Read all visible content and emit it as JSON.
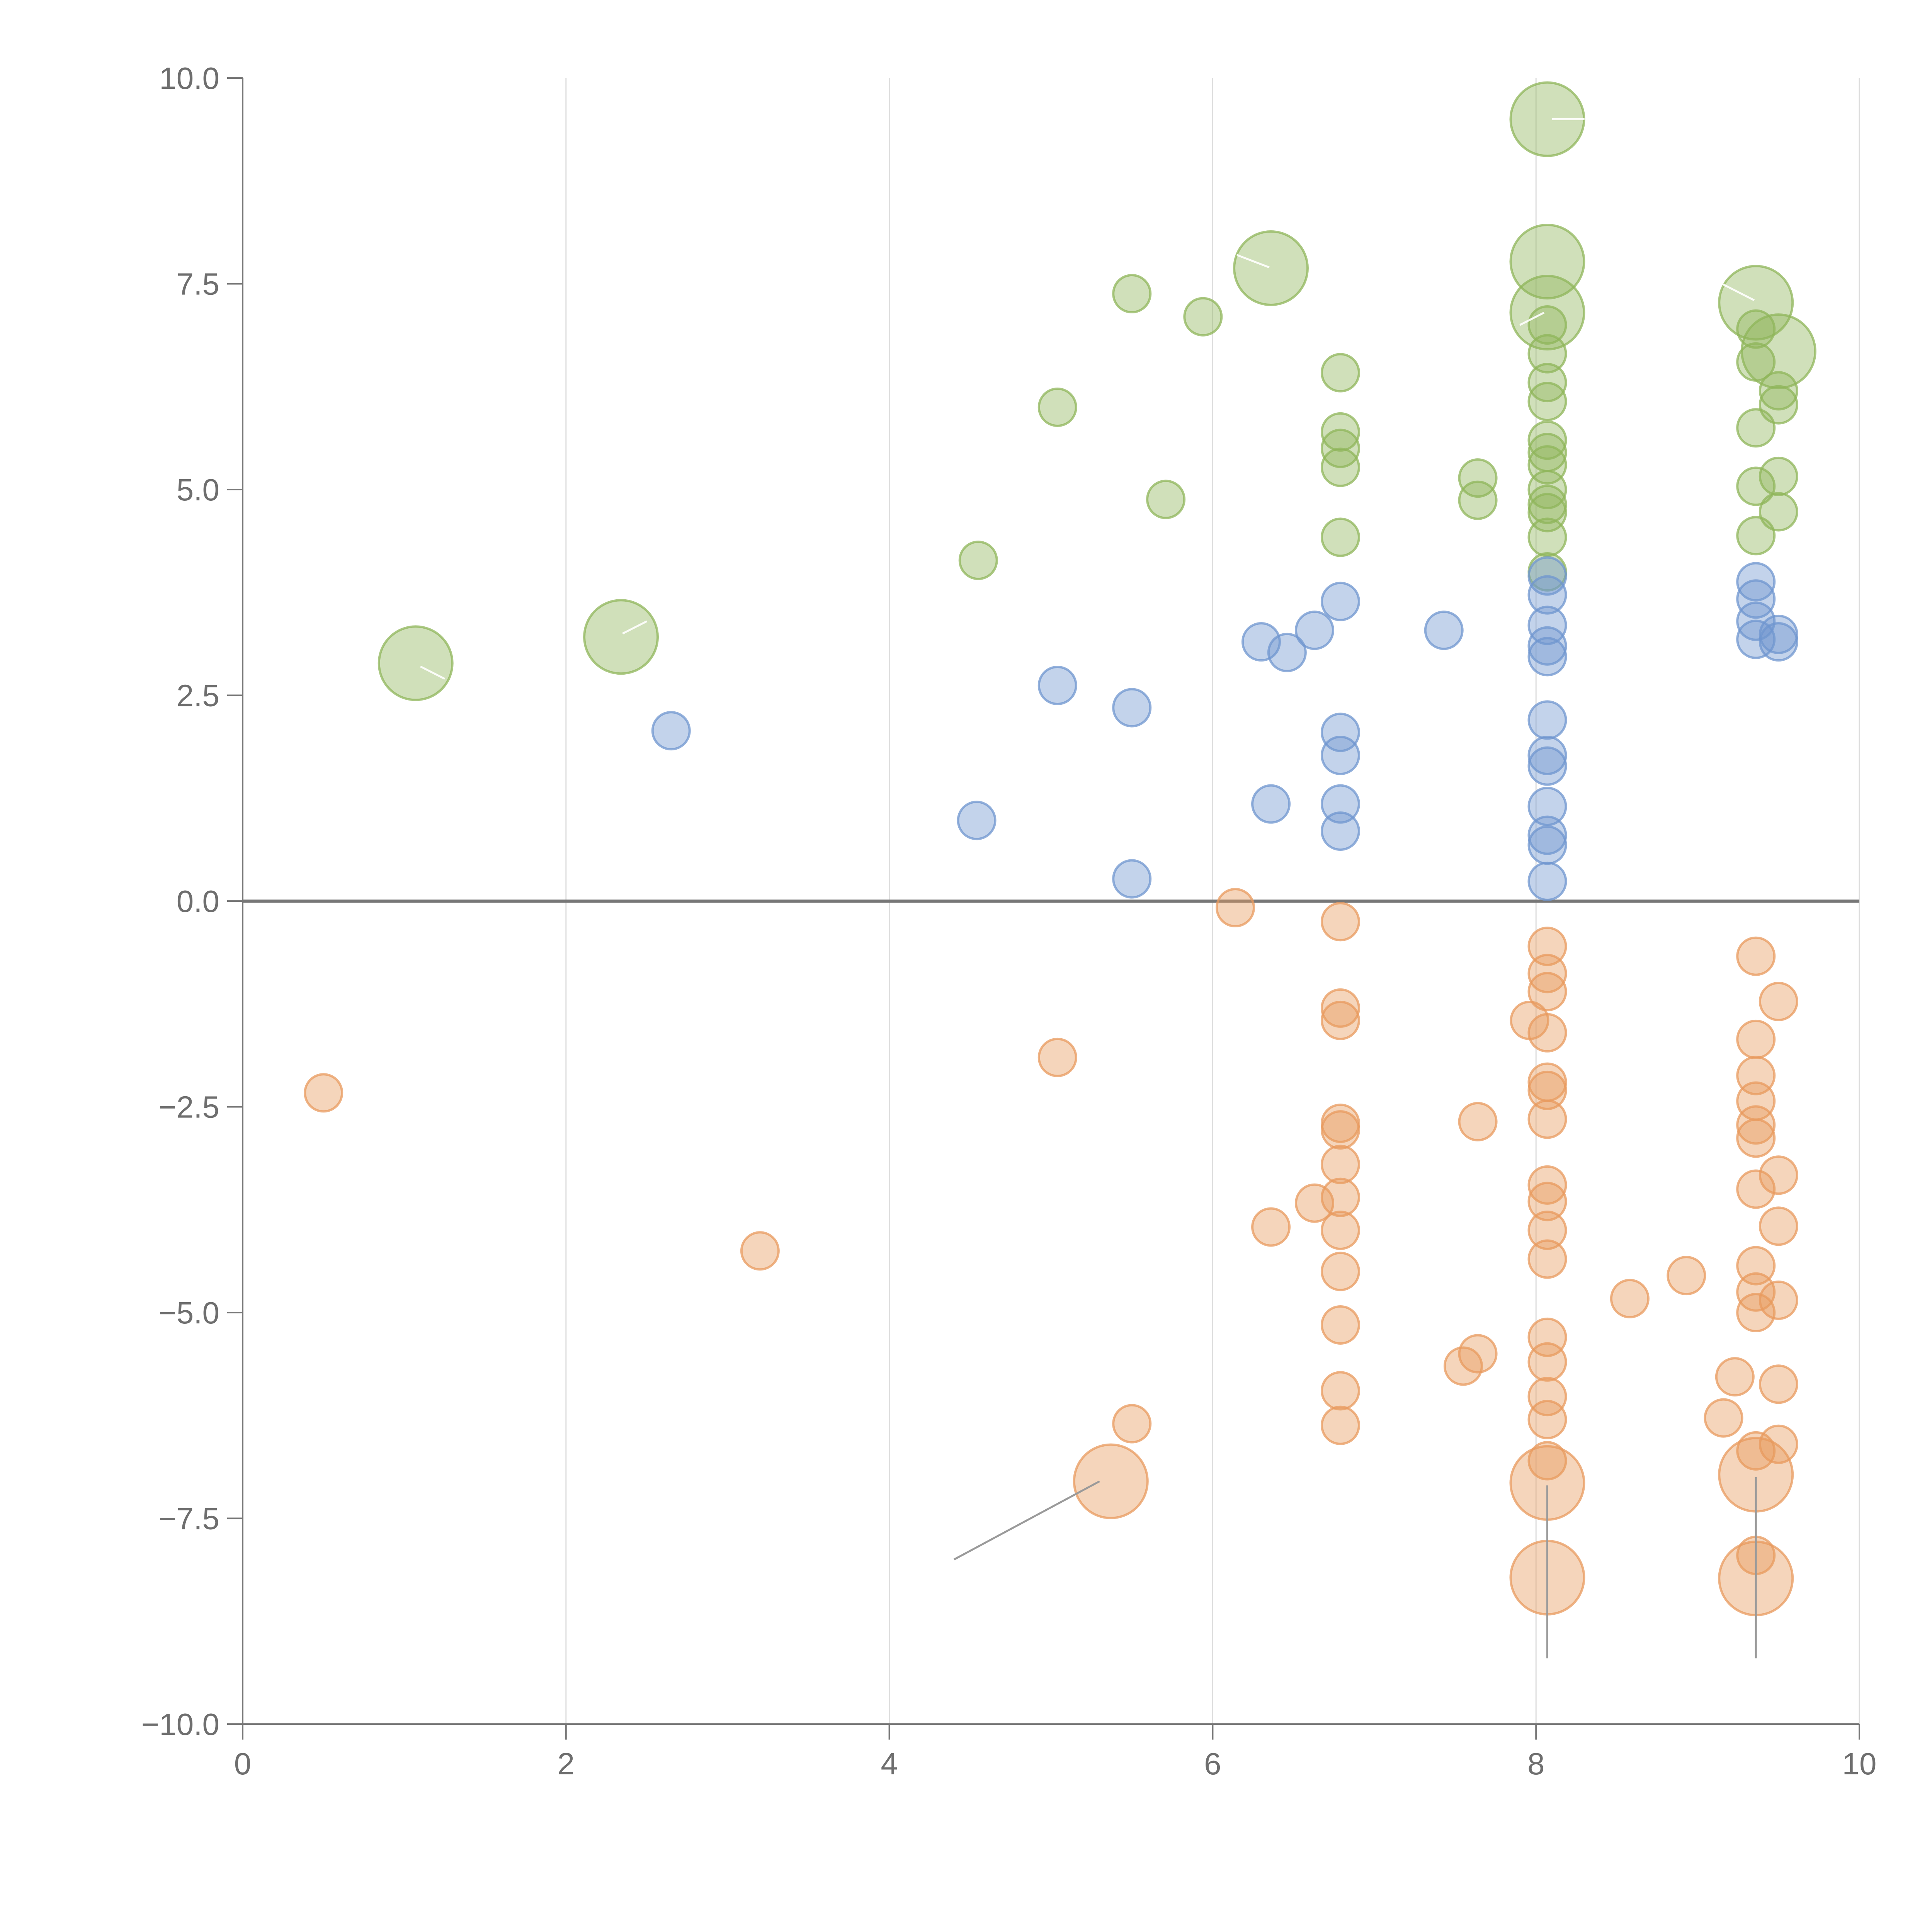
{
  "chart_data": {
    "type": "scatter",
    "title": "",
    "xlabel": "",
    "ylabel": "",
    "xlim": [
      0,
      10
    ],
    "ylim": [
      -10,
      10
    ],
    "x_ticks": [
      "0",
      "2",
      "4",
      "6",
      "8",
      "10"
    ],
    "y_ticks": [
      "10.0",
      "7.5",
      "5.0",
      "2.5",
      "0.0",
      "−2.5",
      "−5.0",
      "−7.5",
      "−10.0"
    ],
    "grid": "vertical",
    "legend": "none",
    "zero_line": 0,
    "series": [
      {
        "name": "green",
        "color": "#8fb55a",
        "points": [
          {
            "x": 1.07,
            "y": 2.89,
            "size": "large"
          },
          {
            "x": 2.34,
            "y": 3.21,
            "size": "large"
          },
          {
            "x": 4.55,
            "y": 4.14
          },
          {
            "x": 5.04,
            "y": 6.0
          },
          {
            "x": 5.5,
            "y": 7.38
          },
          {
            "x": 5.71,
            "y": 4.88
          },
          {
            "x": 5.94,
            "y": 7.1
          },
          {
            "x": 6.36,
            "y": 7.69,
            "size": "large"
          },
          {
            "x": 6.79,
            "y": 6.42
          },
          {
            "x": 6.79,
            "y": 5.7
          },
          {
            "x": 6.79,
            "y": 5.5
          },
          {
            "x": 6.79,
            "y": 5.27
          },
          {
            "x": 6.79,
            "y": 4.42
          },
          {
            "x": 7.64,
            "y": 5.14
          },
          {
            "x": 7.64,
            "y": 4.87
          },
          {
            "x": 8.07,
            "y": 9.5,
            "size": "large"
          },
          {
            "x": 8.07,
            "y": 7.77,
            "size": "large"
          },
          {
            "x": 8.07,
            "y": 7.15,
            "size": "large"
          },
          {
            "x": 8.07,
            "y": 7.0
          },
          {
            "x": 8.07,
            "y": 6.65
          },
          {
            "x": 8.07,
            "y": 6.3
          },
          {
            "x": 8.07,
            "y": 6.07
          },
          {
            "x": 8.07,
            "y": 5.6
          },
          {
            "x": 8.07,
            "y": 5.45
          },
          {
            "x": 8.07,
            "y": 5.3
          },
          {
            "x": 8.07,
            "y": 5.0
          },
          {
            "x": 8.07,
            "y": 4.82
          },
          {
            "x": 8.07,
            "y": 4.72
          },
          {
            "x": 8.07,
            "y": 4.42
          },
          {
            "x": 8.07,
            "y": 4.0
          },
          {
            "x": 9.36,
            "y": 7.27,
            "size": "large"
          },
          {
            "x": 9.36,
            "y": 6.95
          },
          {
            "x": 9.36,
            "y": 6.55
          },
          {
            "x": 9.36,
            "y": 5.75
          },
          {
            "x": 9.36,
            "y": 5.04
          },
          {
            "x": 9.36,
            "y": 4.44
          },
          {
            "x": 9.5,
            "y": 6.68,
            "size": "large"
          },
          {
            "x": 9.5,
            "y": 6.2
          },
          {
            "x": 9.5,
            "y": 6.03
          },
          {
            "x": 9.5,
            "y": 5.16
          },
          {
            "x": 9.5,
            "y": 4.73
          }
        ]
      },
      {
        "name": "blue",
        "color": "#6f96cf",
        "points": [
          {
            "x": 2.65,
            "y": 2.07
          },
          {
            "x": 4.54,
            "y": 0.98
          },
          {
            "x": 5.04,
            "y": 2.62
          },
          {
            "x": 5.5,
            "y": 2.35
          },
          {
            "x": 5.5,
            "y": 0.27
          },
          {
            "x": 6.3,
            "y": 3.15
          },
          {
            "x": 6.36,
            "y": 1.18
          },
          {
            "x": 6.46,
            "y": 3.02
          },
          {
            "x": 6.63,
            "y": 3.29
          },
          {
            "x": 6.79,
            "y": 3.64
          },
          {
            "x": 6.79,
            "y": 2.05
          },
          {
            "x": 6.79,
            "y": 1.77
          },
          {
            "x": 6.79,
            "y": 1.18
          },
          {
            "x": 6.79,
            "y": 0.85
          },
          {
            "x": 7.43,
            "y": 3.29
          },
          {
            "x": 8.07,
            "y": 3.95
          },
          {
            "x": 8.07,
            "y": 3.72
          },
          {
            "x": 8.07,
            "y": 3.35
          },
          {
            "x": 8.07,
            "y": 3.1
          },
          {
            "x": 8.07,
            "y": 2.97
          },
          {
            "x": 8.07,
            "y": 2.2
          },
          {
            "x": 8.07,
            "y": 1.77
          },
          {
            "x": 8.07,
            "y": 1.64
          },
          {
            "x": 8.07,
            "y": 1.15
          },
          {
            "x": 8.07,
            "y": 0.8
          },
          {
            "x": 8.07,
            "y": 0.68
          },
          {
            "x": 8.07,
            "y": 0.24
          },
          {
            "x": 9.36,
            "y": 3.88
          },
          {
            "x": 9.36,
            "y": 3.67
          },
          {
            "x": 9.36,
            "y": 3.4
          },
          {
            "x": 9.36,
            "y": 3.18
          },
          {
            "x": 9.5,
            "y": 3.24
          },
          {
            "x": 9.5,
            "y": 3.15
          }
        ]
      },
      {
        "name": "orange",
        "color": "#e89a5e",
        "points": [
          {
            "x": 0.5,
            "y": -2.33
          },
          {
            "x": 3.2,
            "y": -4.25
          },
          {
            "x": 5.04,
            "y": -1.9
          },
          {
            "x": 5.5,
            "y": -6.35
          },
          {
            "x": 5.37,
            "y": -7.05,
            "size": "large"
          },
          {
            "x": 6.14,
            "y": -0.08
          },
          {
            "x": 6.36,
            "y": -3.96
          },
          {
            "x": 6.63,
            "y": -3.67
          },
          {
            "x": 6.79,
            "y": -0.25
          },
          {
            "x": 6.79,
            "y": -1.3
          },
          {
            "x": 6.79,
            "y": -1.45
          },
          {
            "x": 6.79,
            "y": -2.7
          },
          {
            "x": 6.79,
            "y": -2.78
          },
          {
            "x": 6.79,
            "y": -3.2
          },
          {
            "x": 6.79,
            "y": -3.6
          },
          {
            "x": 6.79,
            "y": -4.0
          },
          {
            "x": 6.79,
            "y": -4.5
          },
          {
            "x": 6.79,
            "y": -5.15
          },
          {
            "x": 6.79,
            "y": -5.95
          },
          {
            "x": 6.79,
            "y": -6.37
          },
          {
            "x": 7.55,
            "y": -5.65
          },
          {
            "x": 7.64,
            "y": -2.68
          },
          {
            "x": 7.64,
            "y": -5.5
          },
          {
            "x": 7.96,
            "y": -1.45
          },
          {
            "x": 8.07,
            "y": -0.55
          },
          {
            "x": 8.07,
            "y": -0.88
          },
          {
            "x": 8.07,
            "y": -1.1
          },
          {
            "x": 8.07,
            "y": -1.6
          },
          {
            "x": 8.07,
            "y": -2.2
          },
          {
            "x": 8.07,
            "y": -2.3
          },
          {
            "x": 8.07,
            "y": -2.65
          },
          {
            "x": 8.07,
            "y": -3.45
          },
          {
            "x": 8.07,
            "y": -3.65
          },
          {
            "x": 8.07,
            "y": -4.0
          },
          {
            "x": 8.07,
            "y": -4.35
          },
          {
            "x": 8.07,
            "y": -5.3
          },
          {
            "x": 8.07,
            "y": -5.6
          },
          {
            "x": 8.07,
            "y": -6.02
          },
          {
            "x": 8.07,
            "y": -6.3
          },
          {
            "x": 8.07,
            "y": -6.8
          },
          {
            "x": 8.07,
            "y": -7.07,
            "size": "large"
          },
          {
            "x": 8.07,
            "y": -8.22,
            "size": "large"
          },
          {
            "x": 8.58,
            "y": -4.83
          },
          {
            "x": 8.93,
            "y": -4.55
          },
          {
            "x": 9.16,
            "y": -6.28
          },
          {
            "x": 9.23,
            "y": -5.78
          },
          {
            "x": 9.36,
            "y": -0.67
          },
          {
            "x": 9.36,
            "y": -1.68
          },
          {
            "x": 9.36,
            "y": -2.12
          },
          {
            "x": 9.36,
            "y": -2.43
          },
          {
            "x": 9.36,
            "y": -2.72
          },
          {
            "x": 9.36,
            "y": -2.88
          },
          {
            "x": 9.36,
            "y": -3.5
          },
          {
            "x": 9.36,
            "y": -4.43
          },
          {
            "x": 9.36,
            "y": -4.75
          },
          {
            "x": 9.36,
            "y": -5.0
          },
          {
            "x": 9.36,
            "y": -6.68
          },
          {
            "x": 9.36,
            "y": -7.95
          },
          {
            "x": 9.36,
            "y": -6.97,
            "size": "large"
          },
          {
            "x": 9.36,
            "y": -8.23,
            "size": "large"
          },
          {
            "x": 9.5,
            "y": -1.22
          },
          {
            "x": 9.5,
            "y": -3.33
          },
          {
            "x": 9.5,
            "y": -3.95
          },
          {
            "x": 9.5,
            "y": -4.85
          },
          {
            "x": 9.5,
            "y": -5.87
          },
          {
            "x": 9.5,
            "y": -6.6
          }
        ]
      }
    ]
  }
}
